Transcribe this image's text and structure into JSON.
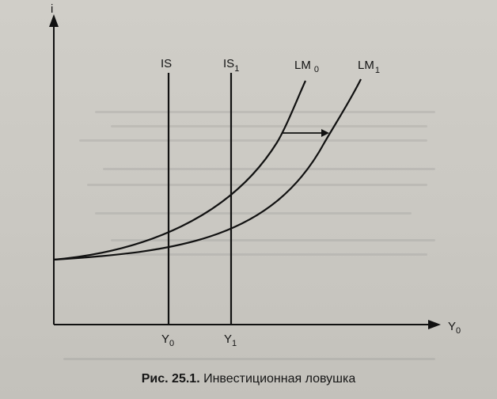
{
  "diagram": {
    "axes": {
      "y_label": "i",
      "x_label_main": "Y",
      "x_label_sub": "0"
    },
    "curves": {
      "is0": {
        "main": "IS",
        "sub": ""
      },
      "is1": {
        "main": "IS",
        "sub": "1"
      },
      "lm0": {
        "main": "LM",
        "sub": "0"
      },
      "lm1": {
        "main": "LM",
        "sub": "1"
      }
    },
    "ticks": {
      "y0": {
        "main": "Y",
        "sub": "0"
      },
      "y1": {
        "main": "Y",
        "sub": "1"
      }
    }
  },
  "caption": {
    "number": "Рис. 25.1.",
    "text": "Инвестиционная ловушка"
  }
}
